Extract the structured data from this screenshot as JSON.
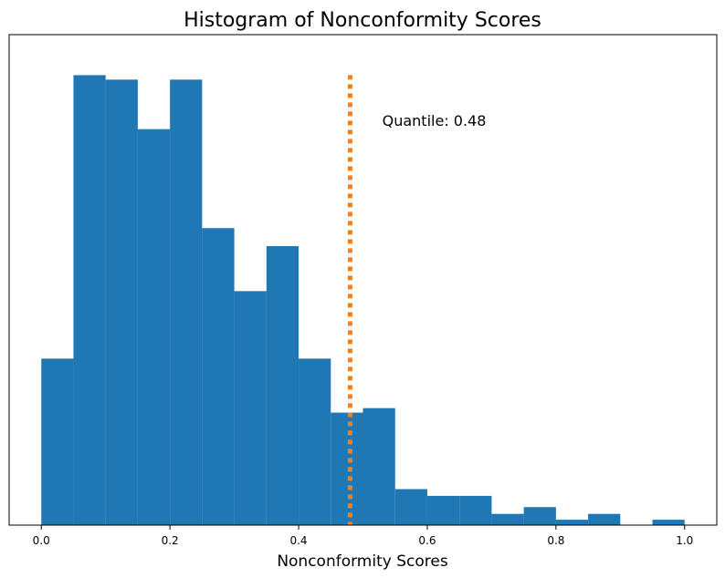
{
  "chart_data": {
    "type": "bar",
    "title": "Histogram of Nonconformity Scores",
    "xlabel": "Nonconformity Scores",
    "ylabel": "",
    "xlim": [
      -0.05,
      1.05
    ],
    "ylim": [
      0,
      1.09
    ],
    "x_ticks": [
      0.0,
      0.2,
      0.4,
      0.6,
      0.8,
      1.0
    ],
    "x_tick_labels": [
      "0.0",
      "0.2",
      "0.4",
      "0.6",
      "0.8",
      "1.0"
    ],
    "y_ticks_shown": false,
    "bin_edges": [
      0.0,
      0.05,
      0.1,
      0.15,
      0.2,
      0.25,
      0.3,
      0.35,
      0.4,
      0.45,
      0.5,
      0.55,
      0.6,
      0.65,
      0.7,
      0.75,
      0.8,
      0.85,
      0.9,
      0.95,
      1.0
    ],
    "values": [
      0.37,
      1.0,
      0.99,
      0.88,
      0.99,
      0.66,
      0.52,
      0.62,
      0.37,
      0.25,
      0.26,
      0.08,
      0.065,
      0.065,
      0.025,
      0.04,
      0.012,
      0.025,
      0.0,
      0.012
    ],
    "bar_color": "#1f77b4",
    "quantile": {
      "value": 0.48,
      "label": "Quantile: 0.48",
      "color": "#ff7f0e",
      "style": "dotted"
    },
    "grid": false
  }
}
